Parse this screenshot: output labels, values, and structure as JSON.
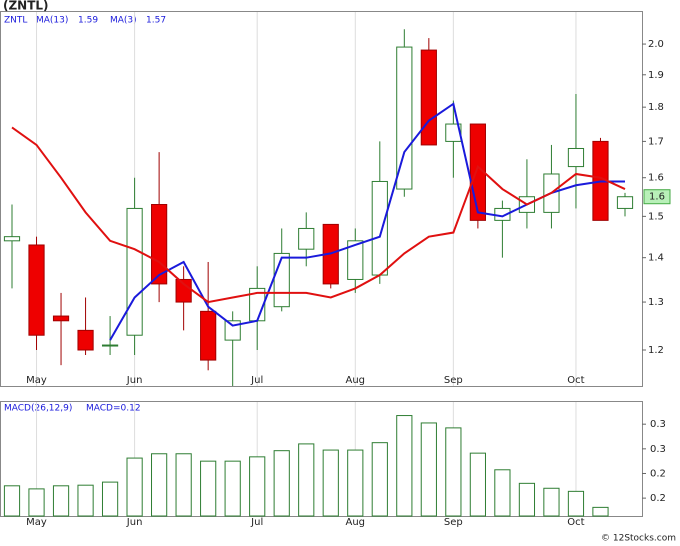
{
  "title": "(ZNTL)",
  "footer": "© 12Stocks.com",
  "chart_data": [
    {
      "type": "candlestick",
      "symbol": "ZNTL",
      "categories": [
        null,
        "May",
        null,
        null,
        null,
        "Jun",
        null,
        null,
        null,
        null,
        "Jul",
        null,
        null,
        null,
        "Aug",
        null,
        null,
        null,
        "Sep",
        null,
        null,
        null,
        null,
        "Oct",
        null,
        null
      ],
      "open": [
        1.44,
        1.43,
        1.27,
        1.24,
        1.21,
        1.23,
        1.53,
        1.35,
        1.28,
        1.22,
        1.26,
        1.29,
        1.42,
        1.48,
        1.35,
        1.36,
        1.57,
        1.98,
        1.7,
        1.75,
        1.49,
        1.51,
        1.51,
        1.63,
        1.7,
        1.52
      ],
      "high": [
        1.53,
        1.45,
        1.32,
        1.31,
        1.27,
        1.6,
        1.67,
        1.38,
        1.39,
        1.28,
        1.38,
        1.47,
        1.51,
        1.48,
        1.47,
        1.7,
        2.05,
        2.02,
        1.82,
        1.75,
        1.54,
        1.65,
        1.69,
        1.84,
        1.71,
        1.56
      ],
      "low": [
        1.33,
        1.2,
        1.17,
        1.19,
        1.19,
        1.19,
        1.3,
        1.24,
        1.16,
        1.13,
        1.2,
        1.28,
        1.38,
        1.33,
        1.32,
        1.34,
        1.55,
        1.69,
        1.6,
        1.47,
        1.4,
        1.47,
        1.47,
        1.52,
        1.49,
        1.5
      ],
      "close": [
        1.45,
        1.23,
        1.26,
        1.2,
        1.21,
        1.52,
        1.34,
        1.3,
        1.18,
        1.26,
        1.33,
        1.41,
        1.47,
        1.34,
        1.44,
        1.59,
        1.99,
        1.69,
        1.75,
        1.49,
        1.52,
        1.55,
        1.61,
        1.68,
        1.49,
        1.55
      ],
      "up_color": "#2e7d32",
      "down_color": "#ee0000",
      "series": [
        {
          "name": "MA(13)",
          "legend_value": 1.59,
          "color": "#1a1adb",
          "values": [
            null,
            null,
            null,
            null,
            1.22,
            1.31,
            1.36,
            1.39,
            1.29,
            1.25,
            1.26,
            1.4,
            1.4,
            1.41,
            1.43,
            1.45,
            1.67,
            1.76,
            1.81,
            1.51,
            1.5,
            1.53,
            1.56,
            1.58,
            1.59,
            1.59
          ]
        },
        {
          "name": "MA(3)",
          "legend_value": 1.57,
          "color": "#e01010",
          "values": [
            1.74,
            1.69,
            1.6,
            1.51,
            1.44,
            1.42,
            1.39,
            1.34,
            1.3,
            1.31,
            1.32,
            1.32,
            1.32,
            1.31,
            1.33,
            1.36,
            1.41,
            1.45,
            1.46,
            1.63,
            1.57,
            1.53,
            1.56,
            1.61,
            1.6,
            1.57
          ]
        }
      ],
      "last_price": 1.6,
      "log_scale": true,
      "ylim": [
        1.13,
        2.11
      ],
      "yticks": [
        1.2,
        1.3,
        1.4,
        1.5,
        1.6,
        1.7,
        1.8,
        1.9,
        {
          "value": 2,
          "label": "2.0"
        }
      ],
      "grid": "x"
    },
    {
      "type": "bar",
      "title": "MACD(26,12,9)",
      "macd_label": "MACD=0.12",
      "categories": [
        null,
        "May",
        null,
        null,
        null,
        "Jun",
        null,
        null,
        null,
        null,
        "Jul",
        null,
        null,
        null,
        "Aug",
        null,
        null,
        null,
        "Sep",
        null,
        null,
        null,
        null,
        "Oct",
        null,
        null
      ],
      "values": [
        0.22,
        0.215,
        0.22,
        0.221,
        0.226,
        0.265,
        0.272,
        0.272,
        0.26,
        0.26,
        0.267,
        0.277,
        0.288,
        0.278,
        0.278,
        0.29,
        0.334,
        0.322,
        0.314,
        0.273,
        0.246,
        0.224,
        0.216,
        0.211,
        0.185,
        null
      ],
      "color": "#2e7d32",
      "ylim": [
        0.171,
        0.356
      ],
      "yticks": [
        {
          "value": 0.32,
          "label": "0.3"
        },
        {
          "value": 0.28,
          "label": "0.3"
        },
        {
          "value": 0.24,
          "label": "0.2"
        },
        {
          "value": 0.2,
          "label": "0.2"
        }
      ],
      "grid": "x"
    }
  ]
}
